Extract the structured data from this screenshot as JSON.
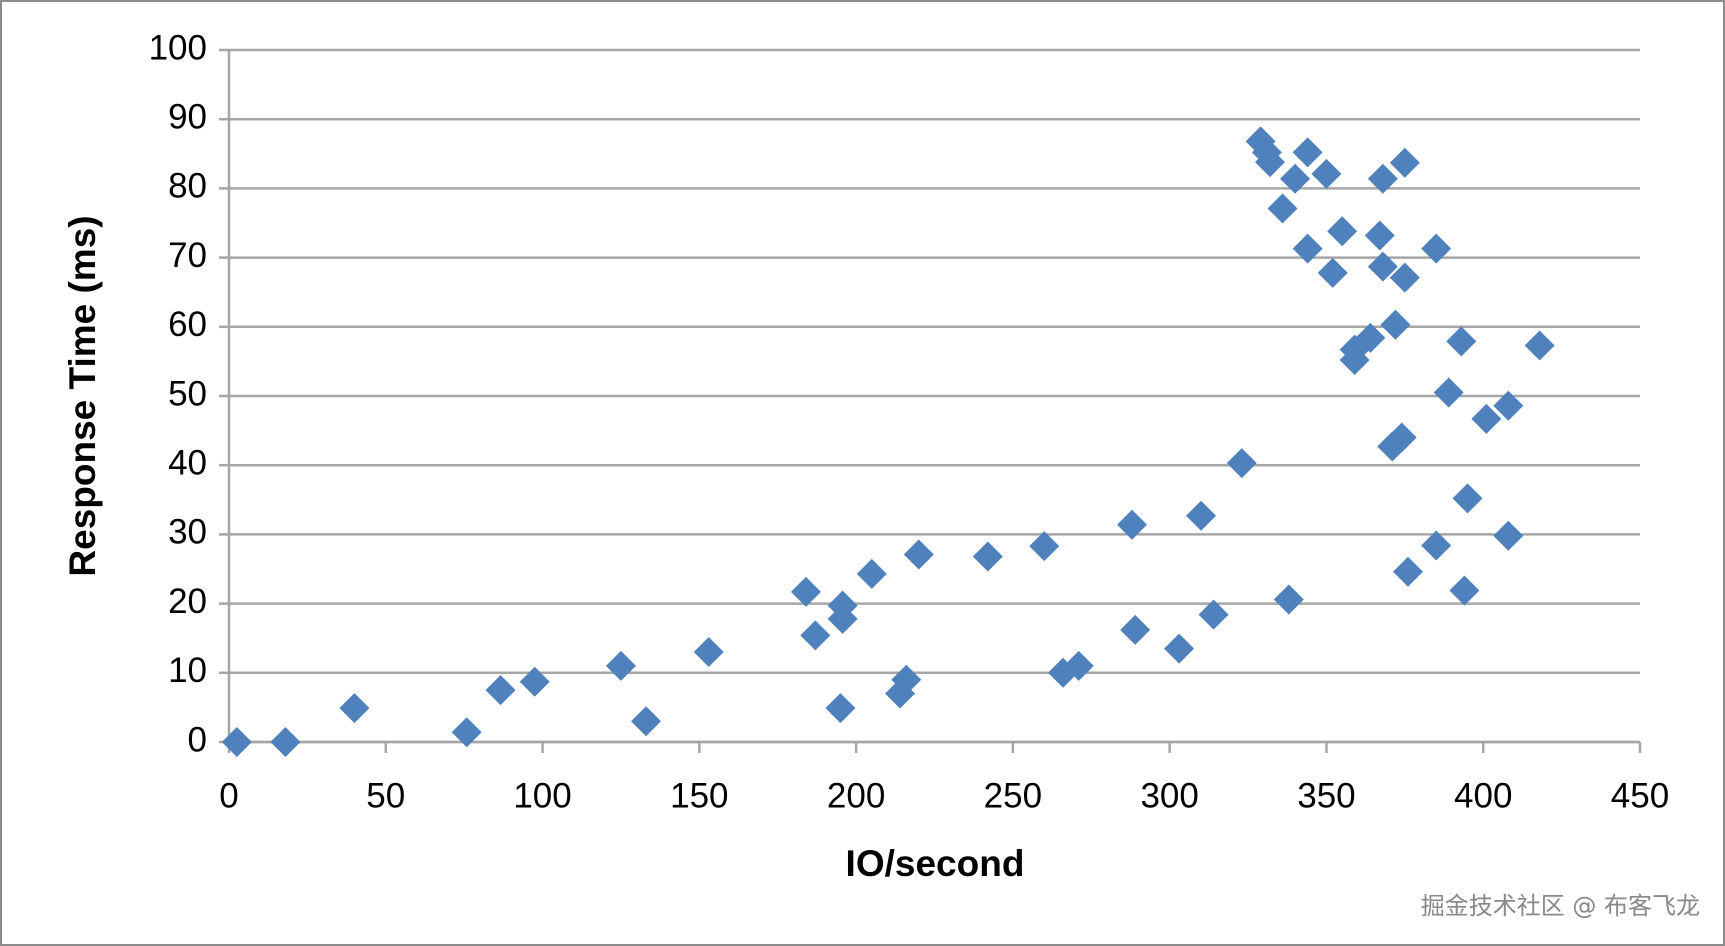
{
  "chart_data": {
    "type": "scatter",
    "x_label": "IO/second",
    "y_label": "Response Time (ms)",
    "annotation": "掘金技术社区 @ 布客飞龙",
    "color": "#4f81bd",
    "grid": true,
    "xlim": [
      0,
      450
    ],
    "xticks": [
      0,
      50,
      100,
      150,
      200,
      250,
      300,
      350,
      400,
      450
    ],
    "ylim": [
      0,
      100
    ],
    "yticks": [
      0,
      10,
      20,
      30,
      40,
      50,
      60,
      70,
      80,
      90,
      100
    ],
    "x": [
      2.5,
      18,
      40,
      75.8,
      86.6,
      97.5,
      125,
      133,
      153,
      184,
      187,
      195.7,
      195.7,
      195,
      205,
      220,
      214,
      216,
      242,
      260,
      266,
      271,
      288,
      289,
      303,
      310,
      314,
      323,
      329,
      331,
      332,
      336,
      340,
      344,
      344,
      338,
      350,
      352,
      355,
      359,
      359,
      364,
      367,
      368,
      368,
      372,
      371,
      374,
      375,
      375,
      376,
      385,
      385,
      389,
      393,
      395,
      394,
      401,
      408,
      408,
      418
    ],
    "values": [
      0,
      0,
      4.9,
      1.4,
      7.5,
      8.7,
      11,
      3,
      13,
      21.7,
      15.4,
      19.7,
      17.8,
      4.9,
      24.3,
      27.1,
      7,
      9,
      26.8,
      28.3,
      10,
      11,
      31.4,
      16.2,
      13.5,
      32.7,
      18.4,
      40.3,
      86.8,
      85.2,
      83.8,
      77.1,
      81.4,
      85.2,
      71.3,
      20.6,
      82.1,
      67.8,
      73.8,
      56.7,
      55.2,
      58.4,
      73.2,
      81.4,
      68.7,
      60.3,
      42.7,
      44,
      83.7,
      67.1,
      24.6,
      71.3,
      28.4,
      50.5,
      57.9,
      35.2,
      21.9,
      46.7,
      48.6,
      29.8,
      57.3
    ]
  }
}
